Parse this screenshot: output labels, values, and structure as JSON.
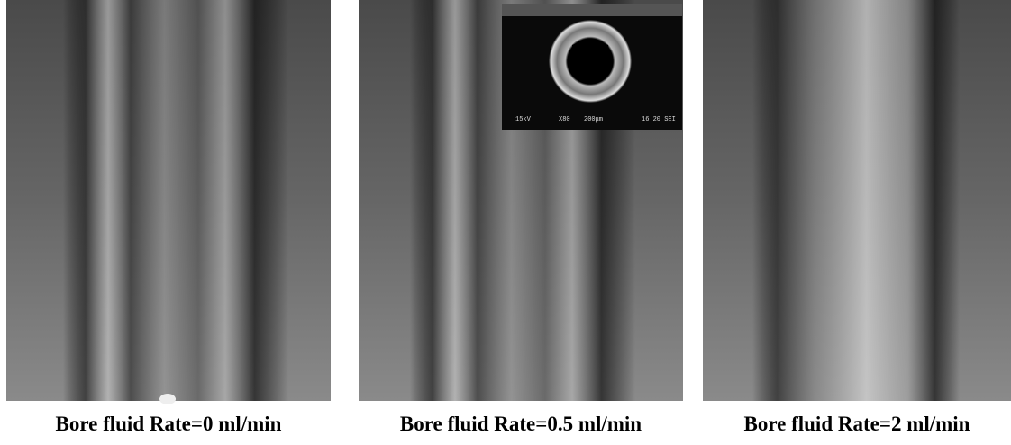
{
  "panels": [
    {
      "caption": "Bore fluid Rate=0 ml/min"
    },
    {
      "caption": "Bore fluid Rate=0.5 ml/min",
      "inset": {
        "labels": [
          "15kV",
          "X80",
          "200μm",
          "16 20 SEI"
        ]
      }
    },
    {
      "caption": "Bore fluid Rate=2 ml/min"
    }
  ]
}
